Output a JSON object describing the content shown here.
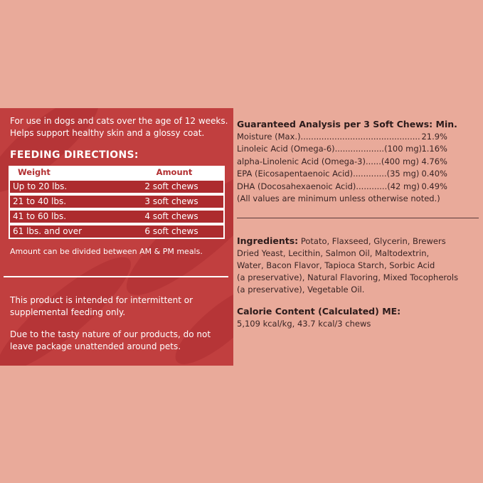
{
  "left_panel": {
    "intro": [
      "For use in dogs and cats over the age of 12 weeks.",
      "Helps support healthy skin and a glossy coat."
    ],
    "feeding_heading": "FEEDING DIRECTIONS:",
    "table": {
      "headers": [
        "Weight",
        "Amount"
      ],
      "rows": [
        [
          "Up to 20 lbs.",
          "2 soft chews"
        ],
        [
          "21 to 40 lbs.",
          "3 soft chews"
        ],
        [
          "41 to 60 lbs.",
          "4 soft chews"
        ],
        [
          "61 lbs. and over",
          "6 soft chews"
        ]
      ]
    },
    "note": "Amount can be divided between AM & PM meals.",
    "intermittent": [
      "This product is intended for intermittent or",
      "supplemental feeding only."
    ],
    "warning": [
      "Due to the tasty nature of our products, do not",
      "leave package unattended around pets."
    ]
  },
  "analysis": {
    "heading": "Guaranteed Analysis per 3 Soft Chews: Min.",
    "rows": [
      {
        "label": "Moisture (Max.)..................................................",
        "value": "21.9%"
      },
      {
        "label": "Linoleic Acid (Omega-6)...................(100 mg)",
        "value": "1.16%"
      },
      {
        "label": "alpha-Linolenic Acid (Omega-3)......(400 mg)",
        "value": "4.76%"
      },
      {
        "label": "EPA (Eicosapentaenoic Acid).............(35 mg)",
        "value": "0.40%"
      },
      {
        "label": "DHA (Docosahexaenoic Acid)............(42 mg)",
        "value": "0.49%"
      }
    ],
    "footnote": "(All values are minimum unless otherwise noted.)"
  },
  "ingredients": {
    "label": "Ingredients:",
    "lines": [
      " Potato, Flaxseed, Glycerin, Brewers",
      "Dried Yeast, Lecithin, Salmon Oil, Maltodextrin,",
      "Water, Bacon Flavor, Tapioca Starch, Sorbic Acid",
      "(a preservative), Natural Flavoring, Mixed Tocopherols",
      "(a preservative), Vegetable Oil."
    ]
  },
  "calorie": {
    "heading": "Calorie Content (Calculated) ME:",
    "value": "5,109 kcal/kg, 43.7 kcal/3 chews"
  },
  "colors": {
    "background": "#e9aa9a",
    "panel": "#c13f3f",
    "table_row": "#ad2b2e"
  }
}
